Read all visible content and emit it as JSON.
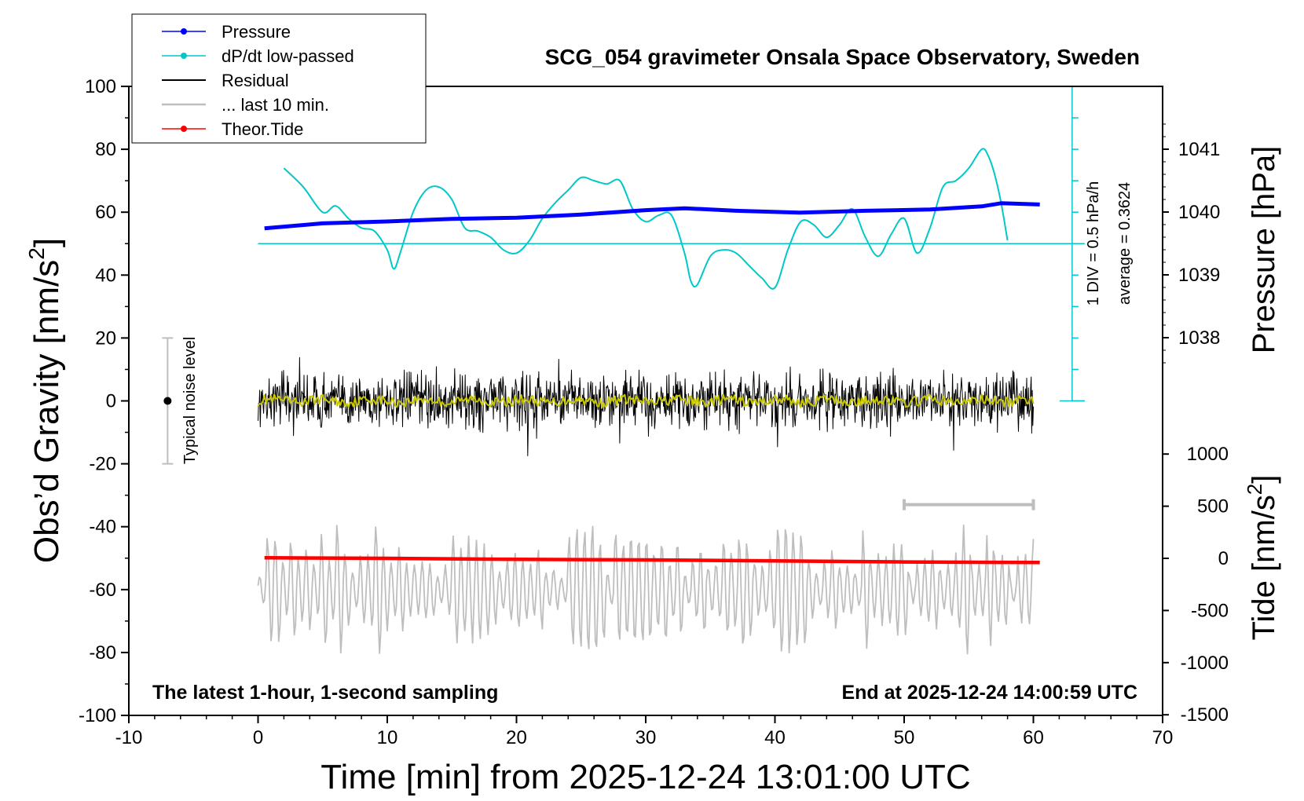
{
  "chart_data": {
    "type": "line",
    "title": "SCG_054 gravimeter Onsala Space Observatory, Sweden",
    "xlabel": "Time [min] from 2025-12-24 13:01:00 UTC",
    "xlim": [
      -10,
      70
    ],
    "xticks": [
      -10,
      0,
      10,
      20,
      30,
      40,
      50,
      60,
      70
    ],
    "left_axis": {
      "label_main": "Obs’d Gravity [nm/s",
      "label_sup": "2",
      "label_end": "]",
      "ylim": [
        -100,
        100
      ],
      "ticks": [
        -100,
        -80,
        -60,
        -40,
        -20,
        0,
        20,
        40,
        60,
        80,
        100
      ]
    },
    "pressure_axis": {
      "label": "Pressure [hPa]",
      "ticks": [
        1038,
        1039,
        1040,
        1041
      ]
    },
    "tide_axis": {
      "label_main": "Tide [nm/s",
      "label_sup": "2",
      "label_end": "]",
      "ticks": [
        1000,
        500,
        0,
        -500,
        -1000,
        -1500
      ]
    },
    "legend": {
      "placement": "top-left",
      "entries": [
        {
          "label": "Pressure",
          "color": "#0000ff",
          "marker": true
        },
        {
          "label": "dP/dt low-passed",
          "color": "#00c8c8",
          "marker": true
        },
        {
          "label": "Residual",
          "color": "#000000",
          "marker": false
        },
        {
          "label": "... last 10 min.",
          "color": "#bebebe",
          "marker": false
        },
        {
          "label": "Theor.Tide",
          "color": "#ff0000",
          "marker": true
        }
      ]
    },
    "annotations": {
      "noise_label": "Typical noise level",
      "noise_range": [
        -20,
        20
      ],
      "div_label": "1 DIV = 0.5 hPa/h",
      "average_label": "average = 0.3624",
      "footer_left": "The latest 1-hour, 1-second sampling",
      "footer_right": "End at 2025-12-24 14:00:59 UTC"
    },
    "series": [
      {
        "name": "Pressure",
        "axis": "pressure_hPa",
        "color": "#0000ff",
        "x": [
          0.5,
          5,
          10,
          15,
          20,
          25,
          30,
          33,
          37,
          42,
          47,
          52,
          56,
          57.5,
          60.5
        ],
        "values": [
          1039.74,
          1039.82,
          1039.85,
          1039.89,
          1039.91,
          1039.96,
          1040.03,
          1040.06,
          1040.02,
          1039.99,
          1040.02,
          1040.04,
          1040.09,
          1040.14,
          1040.12
        ]
      },
      {
        "name": "dP/dt low-passed",
        "axis": "left_nm_s2",
        "color": "#00c8c8",
        "x": [
          2,
          3.5,
          5,
          6,
          7,
          8,
          9,
          10,
          10.5,
          11,
          12,
          13,
          14,
          15,
          16,
          17,
          18,
          19,
          20,
          21,
          22,
          23,
          24,
          25,
          26,
          27,
          28,
          29,
          30,
          31,
          32,
          33,
          33.5,
          34,
          35,
          36,
          37,
          38,
          39,
          40,
          41,
          42,
          43,
          44,
          45,
          46,
          47,
          48,
          49,
          50,
          51,
          52,
          53,
          54,
          55,
          56,
          56.5,
          57,
          57.5,
          58
        ],
        "values": [
          74,
          68,
          60,
          62,
          58,
          55,
          54,
          48,
          42,
          47,
          60,
          67,
          68,
          64,
          55,
          54,
          52,
          48,
          47,
          51,
          58,
          63,
          67,
          71,
          70,
          69,
          70,
          61,
          57,
          59,
          59,
          47,
          38,
          37,
          46,
          48,
          47,
          43,
          39,
          36,
          48,
          57,
          56,
          52,
          56,
          61,
          52,
          46,
          53,
          58,
          47,
          55,
          68,
          70,
          74,
          80,
          78,
          72,
          63,
          51
        ]
      },
      {
        "name": "dP/dt zero line",
        "axis": "left_nm_s2",
        "color": "#00c8c8",
        "x": [
          0,
          63
        ],
        "values": [
          50,
          50
        ]
      },
      {
        "name": "Residual",
        "axis": "left_nm_s2",
        "color": "#000000",
        "x_range": [
          0,
          60
        ],
        "amplitude": 12,
        "center": 0
      },
      {
        "name": "Residual smoothed",
        "axis": "left_nm_s2",
        "color": "#c8c800",
        "x_range": [
          0,
          60
        ],
        "amplitude": 2,
        "center": 0
      },
      {
        "name": "... last 10 min.",
        "axis": "left_nm_s2",
        "color": "#bebebe",
        "x_range": [
          0,
          60
        ],
        "amplitude": 15,
        "center": -60
      },
      {
        "name": "Theor.Tide",
        "axis": "tide_nm_s2",
        "color": "#ff0000",
        "x": [
          0.5,
          10,
          20,
          30,
          40,
          50,
          60.5
        ],
        "values": [
          5,
          0,
          -10,
          -15,
          -25,
          -35,
          -40
        ]
      }
    ],
    "scale_bar": {
      "x": [
        50,
        60
      ],
      "y": -33
    }
  }
}
